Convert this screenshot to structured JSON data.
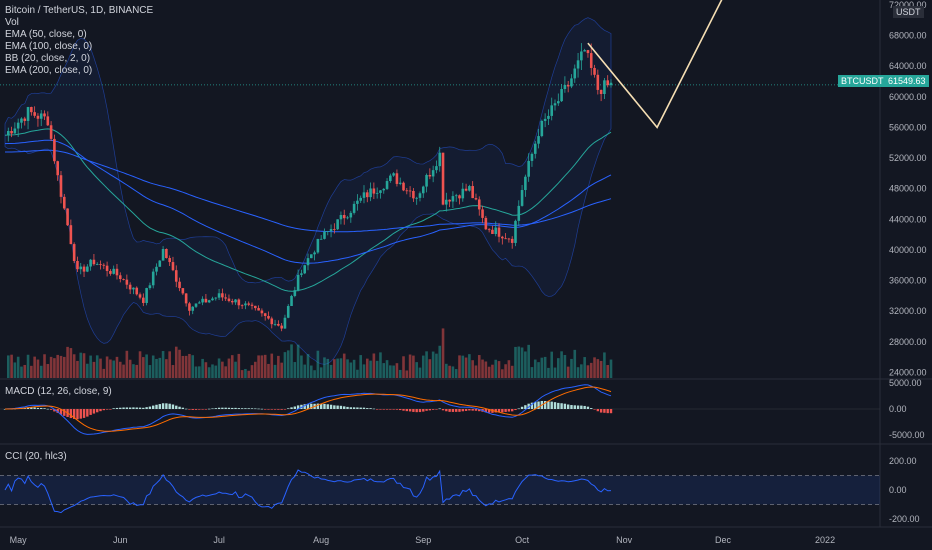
{
  "header": {
    "title": "Bitcoin / TetherUS, 1D, BINANCE",
    "indicators": [
      "Vol",
      "EMA (50, close, 0)",
      "EMA (100, close, 0)",
      "BB (20, close, 2, 0)",
      "EMA (200, close, 0)"
    ]
  },
  "price_scale": {
    "currency": "USDT",
    "ticks": [
      "72000.00",
      "68000.00",
      "64000.00",
      "60000.00",
      "56000.00",
      "52000.00",
      "48000.00",
      "44000.00",
      "40000.00",
      "36000.00",
      "32000.00",
      "28000.00",
      "24000.00"
    ]
  },
  "last_price": {
    "symbol": "BTCUSDT",
    "value": "61549.63"
  },
  "macd": {
    "label": "MACD (12, 26, close, 9)",
    "ticks": [
      "5000.00",
      "0.00",
      "-5000.00"
    ]
  },
  "cci": {
    "label": "CCI (20, hlc3)",
    "ticks": [
      "200.00",
      "0.00",
      "-200.00"
    ]
  },
  "time_axis": [
    "May",
    "Jun",
    "Jul",
    "Aug",
    "Sep",
    "Oct",
    "Nov",
    "Dec",
    "2022"
  ],
  "colors": {
    "background": "#131722",
    "up": "#26a69a",
    "down": "#ef5350",
    "ema50": "#26a69a",
    "ema100": "#2962ff",
    "ema200": "#2962ff",
    "bb": "#2962ff",
    "projection": "#f5deb3",
    "last_price_tag": "#26a69a"
  },
  "chart_data": {
    "type": "candlestick",
    "series_path": [
      {
        "x": "2021-04-27",
        "close": 55000
      },
      {
        "x": "2021-05-04",
        "close": 58000
      },
      {
        "x": "2021-05-10",
        "close": 57000
      },
      {
        "x": "2021-05-13",
        "close": 49500
      },
      {
        "x": "2021-05-19",
        "close": 37000
      },
      {
        "x": "2021-05-24",
        "close": 38500
      },
      {
        "x": "2021-06-01",
        "close": 36500
      },
      {
        "x": "2021-06-08",
        "close": 33500
      },
      {
        "x": "2021-06-14",
        "close": 40000
      },
      {
        "x": "2021-06-22",
        "close": 32500
      },
      {
        "x": "2021-07-01",
        "close": 34000
      },
      {
        "x": "2021-07-08",
        "close": 33000
      },
      {
        "x": "2021-07-20",
        "close": 30000
      },
      {
        "x": "2021-07-26",
        "close": 37500
      },
      {
        "x": "2021-08-01",
        "close": 41500
      },
      {
        "x": "2021-08-14",
        "close": 47000
      },
      {
        "x": "2021-08-23",
        "close": 49500
      },
      {
        "x": "2021-08-30",
        "close": 47000
      },
      {
        "x": "2021-09-06",
        "close": 52500
      },
      {
        "x": "2021-09-07",
        "close": 46500
      },
      {
        "x": "2021-09-15",
        "close": 48000
      },
      {
        "x": "2021-09-20",
        "close": 43000
      },
      {
        "x": "2021-09-28",
        "close": 41500
      },
      {
        "x": "2021-10-01",
        "close": 48000
      },
      {
        "x": "2021-10-06",
        "close": 55500
      },
      {
        "x": "2021-10-15",
        "close": 61500
      },
      {
        "x": "2021-10-20",
        "close": 66000
      },
      {
        "x": "2021-10-24",
        "close": 61000
      },
      {
        "x": "2021-10-28",
        "close": 61549.63
      }
    ],
    "projection": [
      {
        "x": "2021-10-21",
        "close": 67000
      },
      {
        "x": "2021-11-11",
        "close": 56000
      },
      {
        "x": "2021-12-01",
        "close": 73000
      }
    ],
    "ylim": [
      22500,
      72500
    ]
  }
}
